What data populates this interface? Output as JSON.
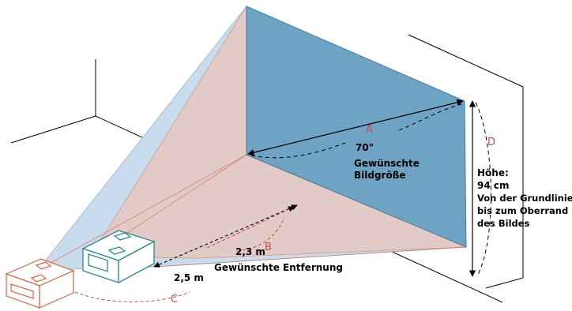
{
  "labels": {
    "letter_a": "A",
    "letter_b": "B",
    "letter_c": "C",
    "letter_d": "D",
    "diagonal_size": "70\"",
    "desired_image_size_line1": "Gewünschte",
    "desired_image_size_line2": "Bildgröße",
    "distance_short": "2,3 m",
    "distance_long": "2,5 m",
    "desired_distance": "Gewünschte Entfernung",
    "height_title": "Höhe:",
    "height_value": "94 cm",
    "height_desc_line1": "Von der Grundlinie",
    "height_desc_line2": "bis zum Oberrand",
    "height_desc_line3": "des Bildes"
  },
  "colors": {
    "screen_fill": "#6fa3c4",
    "blue_cone": "#c9dced",
    "salmon_cone": "#e7c8c0",
    "projector_near": "#2e8a8a",
    "projector_far": "#d9644a",
    "letter_color": "#c0504d"
  }
}
